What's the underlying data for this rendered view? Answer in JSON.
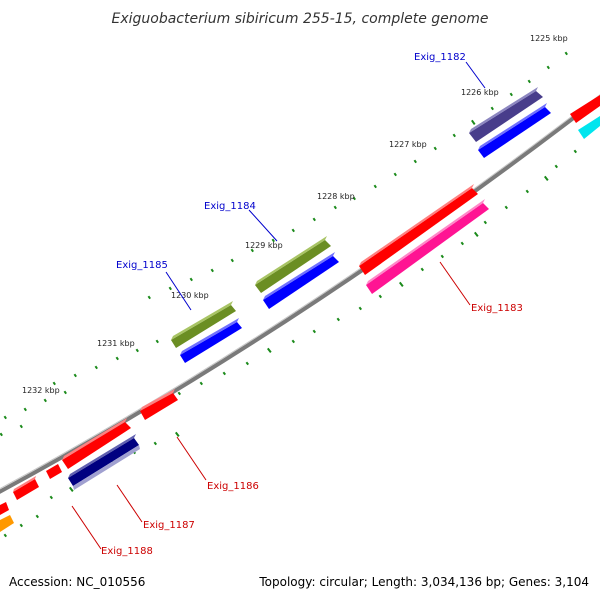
{
  "title": "Exiguobacterium sibiricum 255-15, complete genome",
  "footer": {
    "accession": "Accession: NC_010556",
    "summary": "Topology: circular; Length: 3,034,136 bp; Genes: 3,104"
  },
  "ruler_labels": [
    "1225 kbp",
    "1226 kbp",
    "1227 kbp",
    "1228 kbp",
    "1229 kbp",
    "1230 kbp",
    "1231 kbp",
    "1232 kbp"
  ],
  "genes": {
    "exig_1182": "Exig_1182",
    "exig_1183": "Exig_1183",
    "exig_1184": "Exig_1184",
    "exig_1185": "Exig_1185",
    "exig_1186": "Exig_1186",
    "exig_1187": "Exig_1187",
    "exig_1188": "Exig_1188"
  },
  "colors": {
    "backbone": "#888888",
    "tick": "#1a8a1a",
    "forward_label": "#0000cc",
    "reverse_label": "#cc0000",
    "red": "#ff0000",
    "pink": "#ff1493",
    "olive": "#6b8e23",
    "blue": "#0000ff",
    "slate": "#483d8b",
    "navy": "#000080",
    "cyan": "#00e5ee",
    "orange": "#ff9900"
  }
}
